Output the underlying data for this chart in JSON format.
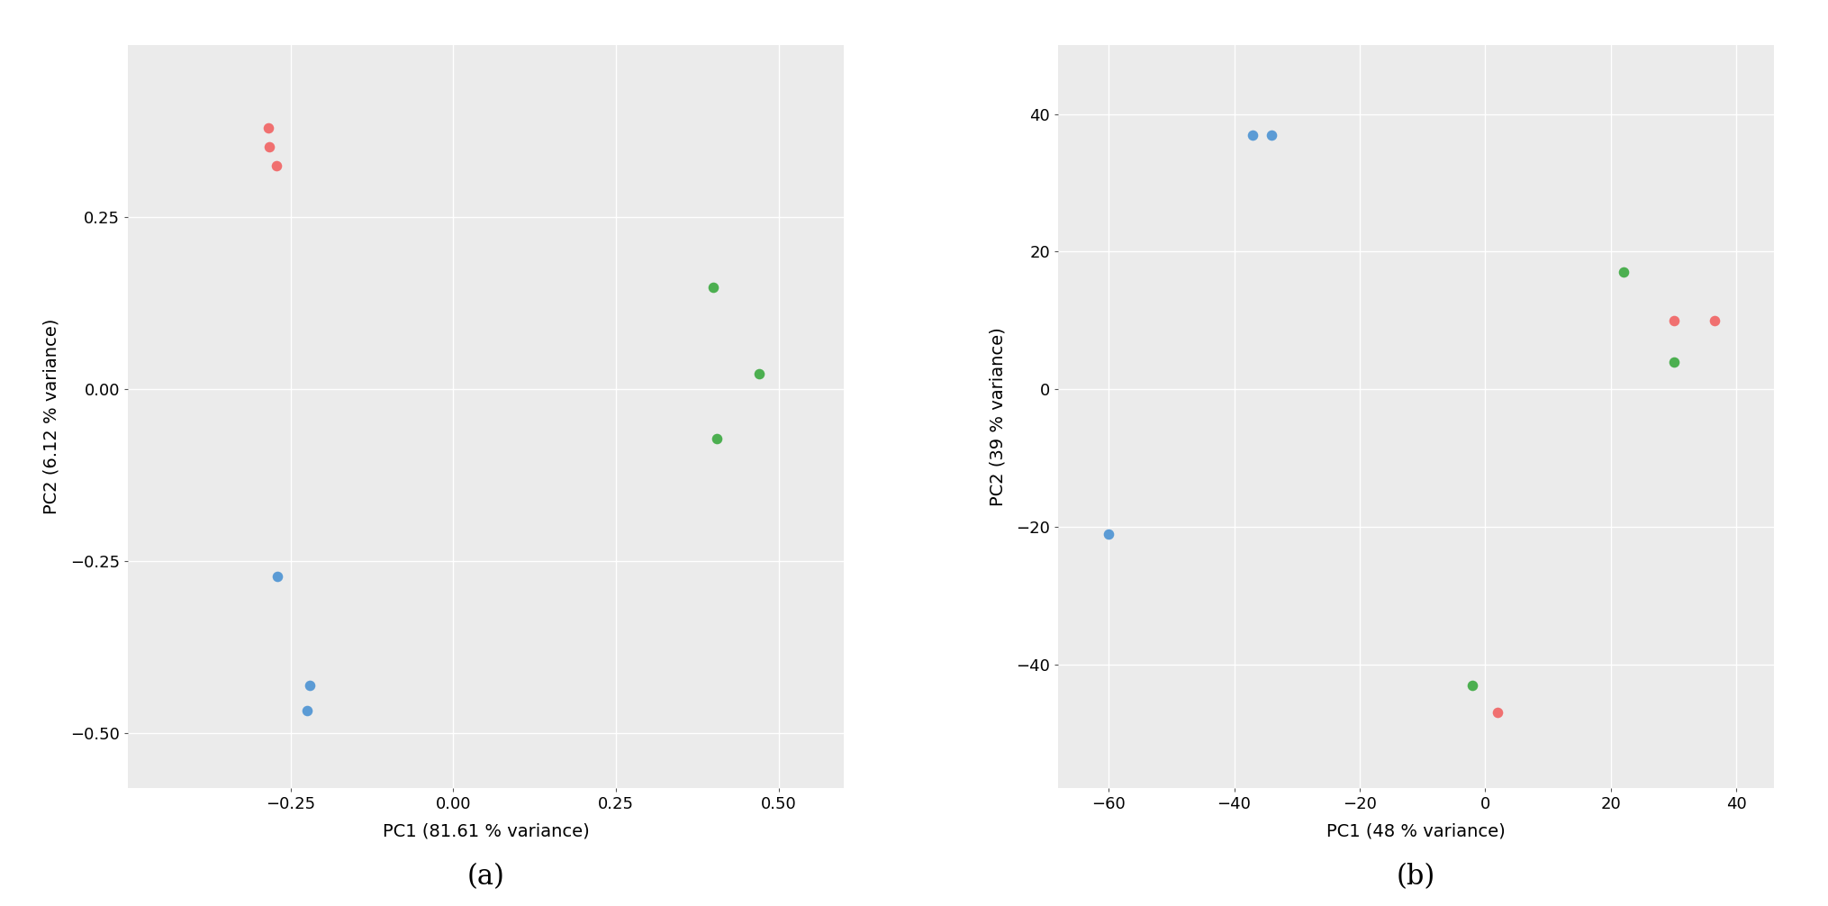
{
  "plot_a": {
    "xlabel": "PC1 (81.61 % variance)",
    "ylabel": "PC2 (6.12 % variance)",
    "label": "(a)",
    "red_points": [
      [
        -0.285,
        0.38
      ],
      [
        -0.283,
        0.353
      ],
      [
        -0.272,
        0.325
      ]
    ],
    "green_points": [
      [
        0.4,
        0.148
      ],
      [
        0.47,
        0.022
      ],
      [
        0.405,
        -0.072
      ]
    ],
    "blue_points": [
      [
        -0.27,
        -0.272
      ],
      [
        -0.22,
        -0.43
      ],
      [
        -0.225,
        -0.467
      ]
    ],
    "xlim": [
      -0.5,
      0.6
    ],
    "ylim": [
      -0.58,
      0.5
    ],
    "xticks": [
      -0.25,
      0.0,
      0.25,
      0.5
    ],
    "yticks": [
      -0.5,
      -0.25,
      0.0,
      0.25
    ]
  },
  "plot_b": {
    "xlabel": "PC1 (48 % variance)",
    "ylabel": "PC2 (39 % variance)",
    "label": "(b)",
    "red_points": [
      [
        30.0,
        10.0
      ],
      [
        36.5,
        10.0
      ],
      [
        2.0,
        -47.0
      ]
    ],
    "green_points": [
      [
        22.0,
        17.0
      ],
      [
        30.0,
        4.0
      ],
      [
        -2.0,
        -43.0
      ]
    ],
    "blue_points": [
      [
        -37.0,
        37.0
      ],
      [
        -34.0,
        37.0
      ],
      [
        -60.0,
        -21.0
      ]
    ],
    "xlim": [
      -68,
      46
    ],
    "ylim": [
      -58,
      50
    ],
    "xticks": [
      -60,
      -40,
      -20,
      0,
      20,
      40
    ],
    "yticks": [
      -40,
      -20,
      0,
      20,
      40
    ]
  },
  "bg_color": "#EBEBEB",
  "grid_color": "#FFFFFF",
  "red_color": "#F07070",
  "green_color": "#4CAF50",
  "blue_color": "#5B9BD5",
  "marker_size": 70,
  "label_fontsize": 22,
  "axis_fontsize": 14,
  "tick_fontsize": 13
}
